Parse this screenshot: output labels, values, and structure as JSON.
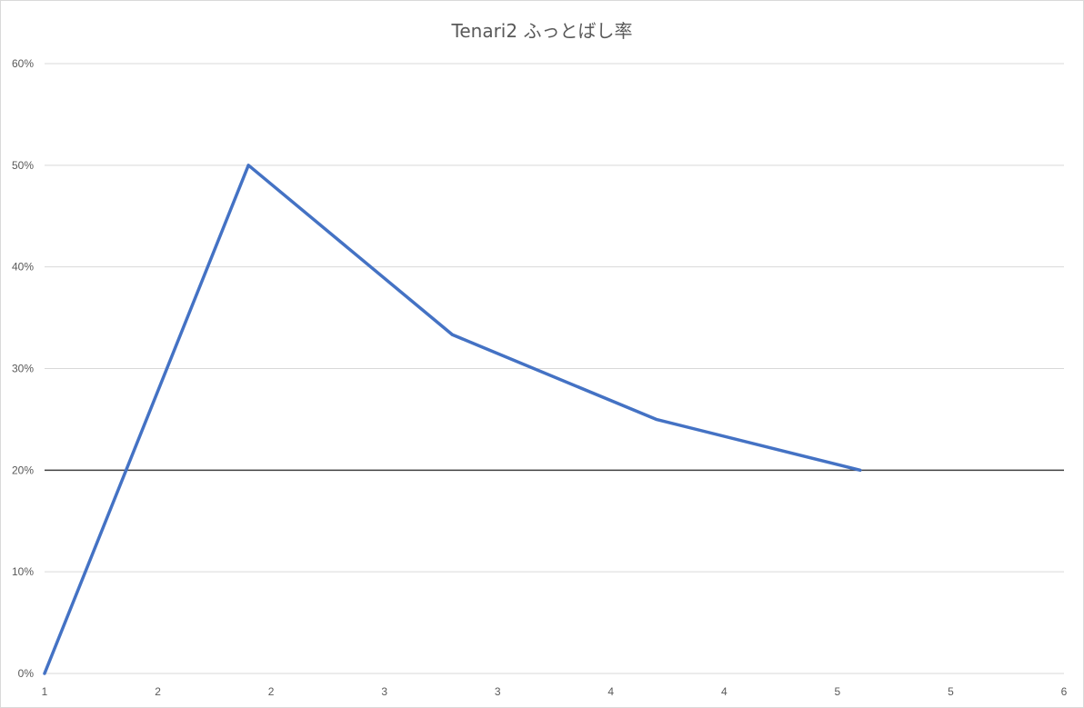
{
  "chart_data": {
    "type": "line",
    "title": "Tenari2 ふっとばし率",
    "xlabel": "",
    "ylabel": "",
    "x_tick_labels": [
      "1",
      "2",
      "2",
      "3",
      "3",
      "4",
      "4",
      "5",
      "5",
      "6"
    ],
    "x_range": [
      1,
      6
    ],
    "y_tick_labels": [
      "0%",
      "10%",
      "20%",
      "30%",
      "40%",
      "50%",
      "60%"
    ],
    "ylim": [
      0,
      0.6
    ],
    "grid": true,
    "legend": "none",
    "series": [
      {
        "x": [
          1,
          2,
          3,
          4,
          5
        ],
        "values": [
          0.0,
          0.5,
          0.3333,
          0.25,
          0.2
        ],
        "color": "#4472c4"
      }
    ],
    "reference_line": {
      "y": 0.2,
      "color": "#404040"
    },
    "colors": {
      "gridline": "#d9d9d9",
      "axis_text": "#595959",
      "title_text": "#595959"
    }
  }
}
